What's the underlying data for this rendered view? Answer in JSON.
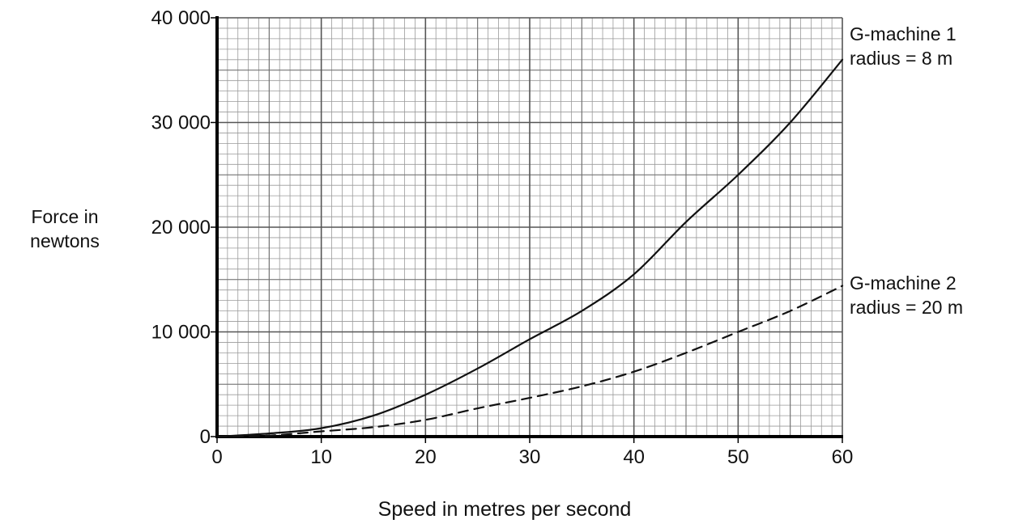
{
  "chart_data": {
    "type": "line",
    "xlabel": "Speed in metres per second",
    "ylabel_lines": [
      "Force in",
      "newtons"
    ],
    "xlim": [
      0,
      60
    ],
    "ylim": [
      0,
      40000
    ],
    "x_ticks": [
      "0",
      "10",
      "20",
      "30",
      "40",
      "50",
      "60"
    ],
    "y_ticks": [
      "0",
      "10 000",
      "20 000",
      "30 000",
      "40 000"
    ],
    "grid": true,
    "series": [
      {
        "name": "G-machine 1",
        "label_lines": [
          "G-machine 1",
          "radius = 8 m"
        ],
        "line_style": "solid",
        "x": [
          0,
          5,
          10,
          15,
          20,
          25,
          30,
          35,
          40,
          45,
          50,
          55,
          60
        ],
        "values": [
          0,
          300,
          800,
          2000,
          4000,
          6500,
          9300,
          12000,
          15500,
          20500,
          25000,
          30000,
          36000
        ]
      },
      {
        "name": "G-machine 2",
        "label_lines": [
          "G-machine 2",
          "radius = 20 m"
        ],
        "line_style": "dashed",
        "x": [
          0,
          5,
          10,
          15,
          20,
          25,
          30,
          35,
          40,
          45,
          50,
          55,
          60
        ],
        "values": [
          0,
          100,
          500,
          900,
          1600,
          2700,
          3700,
          4800,
          6200,
          8000,
          10000,
          12000,
          14400
        ]
      }
    ]
  }
}
